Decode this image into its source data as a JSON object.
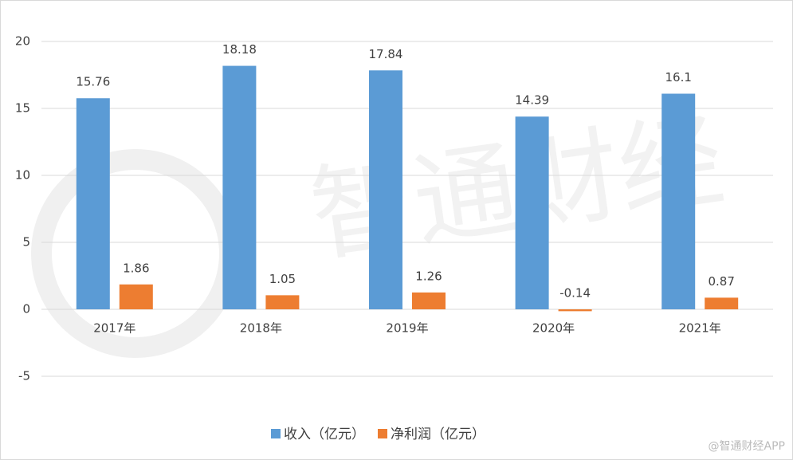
{
  "chart_data": {
    "type": "bar",
    "categories": [
      "2017年",
      "2018年",
      "2019年",
      "2020年",
      "2021年"
    ],
    "series": [
      {
        "name": "收入（亿元）",
        "color": "#5b9bd5",
        "values": [
          15.76,
          18.18,
          17.84,
          14.39,
          16.1
        ]
      },
      {
        "name": "净利润（亿元）",
        "color": "#ed7d31",
        "values": [
          1.86,
          1.05,
          1.26,
          -0.14,
          0.87
        ]
      }
    ],
    "ylim": [
      -5,
      20
    ],
    "yticks": [
      -5,
      0,
      5,
      10,
      15,
      20
    ],
    "grid": true,
    "legend": "bottom",
    "watermark": "智通财经",
    "credit": "@智通财经APP"
  }
}
